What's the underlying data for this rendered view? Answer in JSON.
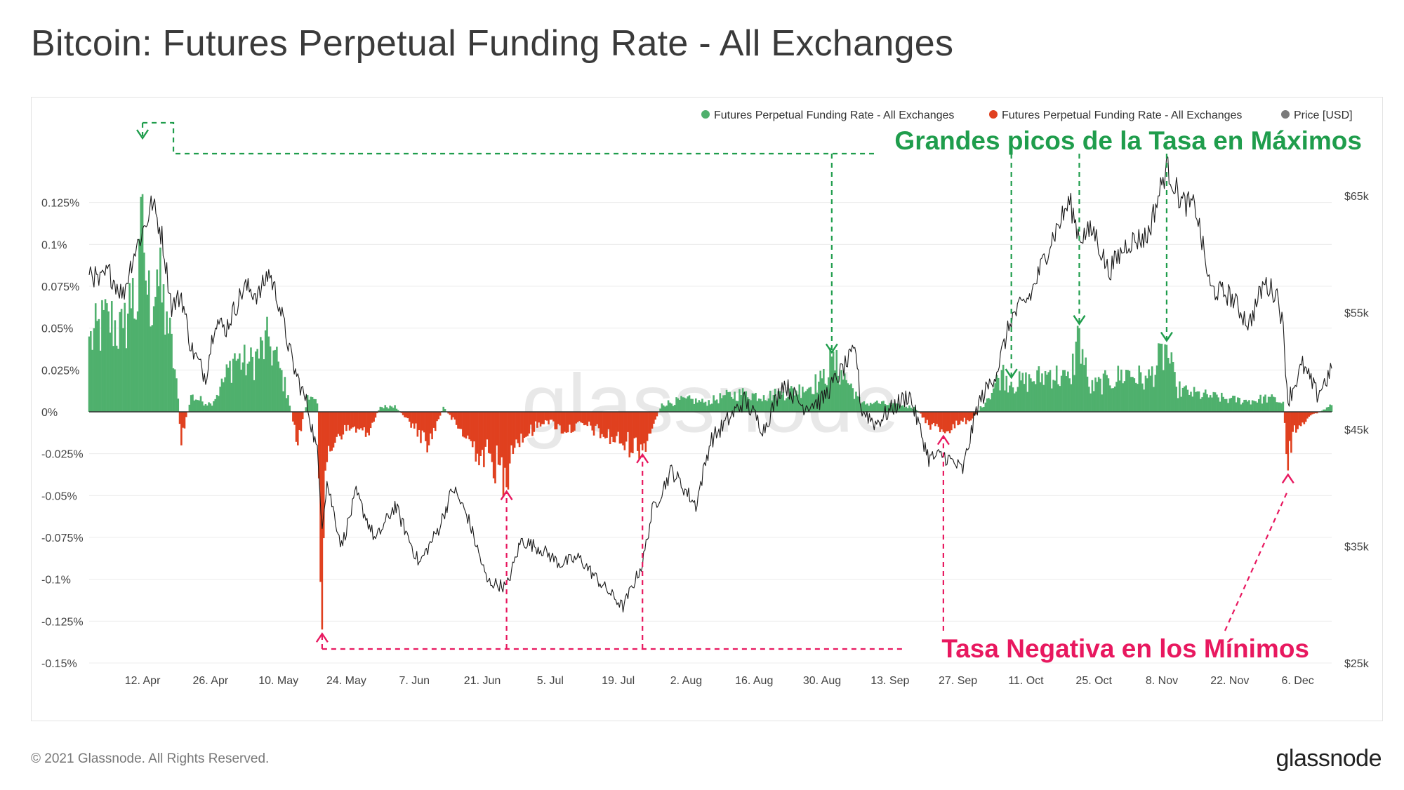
{
  "title": "Bitcoin: Futures Perpetual Funding Rate - All Exchanges",
  "footer": {
    "copyright": "© 2021 Glassnode. All Rights Reserved.",
    "brand": "glassnode"
  },
  "chart_data": {
    "type": "area",
    "watermark": "glassnode",
    "legend": {
      "placement": "top-right",
      "entries": [
        {
          "label": "Futures Perpetual Funding Rate - All Exchanges",
          "color": "#4fb06d"
        },
        {
          "label": "Futures Perpetual Funding Rate - All Exchanges",
          "color": "#e0401f"
        },
        {
          "label": "Price [USD]",
          "color": "#7a7a7a"
        }
      ]
    },
    "x_ticks": [
      "12. Apr",
      "26. Apr",
      "10. May",
      "24. May",
      "7. Jun",
      "21. Jun",
      "5. Jul",
      "19. Jul",
      "2. Aug",
      "16. Aug",
      "30. Aug",
      "13. Sep",
      "27. Sep",
      "11. Oct",
      "25. Oct",
      "8. Nov",
      "22. Nov",
      "6. Dec"
    ],
    "x_range": [
      "2021-04-01",
      "2021-12-13"
    ],
    "y_left": {
      "ticks": [
        "0.125%",
        "0.1%",
        "0.075%",
        "0.05%",
        "0.025%",
        "0%",
        "-0.025%",
        "-0.05%",
        "-0.075%",
        "-0.1%",
        "-0.125%",
        "-0.15%"
      ],
      "range": [
        -0.15,
        0.15
      ]
    },
    "y_right": {
      "ticks": [
        "$65k",
        "$55k",
        "$45k",
        "$35k",
        "$25k"
      ],
      "range": [
        25000,
        68000
      ]
    },
    "funding_rate_pct": {
      "anchors": [
        [
          "2021-04-01",
          0.045
        ],
        [
          "2021-04-05",
          0.06
        ],
        [
          "2021-04-08",
          0.05
        ],
        [
          "2021-04-10",
          0.08
        ],
        [
          "2021-04-11",
          0.06
        ],
        [
          "2021-04-12",
          0.13
        ],
        [
          "2021-04-13",
          0.07
        ],
        [
          "2021-04-15",
          0.085
        ],
        [
          "2021-04-17",
          0.06
        ],
        [
          "2021-04-19",
          0.02
        ],
        [
          "2021-04-20",
          -0.02
        ],
        [
          "2021-04-22",
          0.01
        ],
        [
          "2021-04-26",
          0.005
        ],
        [
          "2021-04-28",
          0.015
        ],
        [
          "2021-05-01",
          0.035
        ],
        [
          "2021-05-04",
          0.03
        ],
        [
          "2021-05-08",
          0.045
        ],
        [
          "2021-05-10",
          0.03
        ],
        [
          "2021-05-12",
          0.01
        ],
        [
          "2021-05-14",
          -0.02
        ],
        [
          "2021-05-16",
          0.01
        ],
        [
          "2021-05-18",
          0.005
        ],
        [
          "2021-05-19",
          -0.13
        ],
        [
          "2021-05-20",
          -0.03
        ],
        [
          "2021-05-22",
          -0.015
        ],
        [
          "2021-05-25",
          -0.01
        ],
        [
          "2021-05-28",
          -0.015
        ],
        [
          "2021-05-31",
          0.003
        ],
        [
          "2021-06-03",
          0.004
        ],
        [
          "2021-06-07",
          -0.01
        ],
        [
          "2021-06-10",
          -0.02
        ],
        [
          "2021-06-13",
          0.003
        ],
        [
          "2021-06-16",
          -0.01
        ],
        [
          "2021-06-20",
          -0.025
        ],
        [
          "2021-06-23",
          -0.03
        ],
        [
          "2021-06-26",
          -0.045
        ],
        [
          "2021-06-27",
          -0.02
        ],
        [
          "2021-06-30",
          -0.015
        ],
        [
          "2021-07-04",
          -0.005
        ],
        [
          "2021-07-08",
          -0.012
        ],
        [
          "2021-07-12",
          -0.008
        ],
        [
          "2021-07-16",
          -0.015
        ],
        [
          "2021-07-20",
          -0.02
        ],
        [
          "2021-07-24",
          -0.023
        ],
        [
          "2021-07-26",
          -0.01
        ],
        [
          "2021-07-28",
          0.005
        ],
        [
          "2021-08-02",
          0.008
        ],
        [
          "2021-08-06",
          0.006
        ],
        [
          "2021-08-10",
          0.01
        ],
        [
          "2021-08-14",
          0.012
        ],
        [
          "2021-08-18",
          0.01
        ],
        [
          "2021-08-22",
          0.012
        ],
        [
          "2021-08-26",
          0.015
        ],
        [
          "2021-08-30",
          0.02
        ],
        [
          "2021-09-01",
          0.033
        ],
        [
          "2021-09-03",
          0.025
        ],
        [
          "2021-09-06",
          0.012
        ],
        [
          "2021-09-07",
          0.005
        ],
        [
          "2021-09-10",
          0.006
        ],
        [
          "2021-09-14",
          0.004
        ],
        [
          "2021-09-18",
          0.003
        ],
        [
          "2021-09-21",
          -0.008
        ],
        [
          "2021-09-24",
          -0.012
        ],
        [
          "2021-09-27",
          -0.008
        ],
        [
          "2021-09-30",
          -0.004
        ],
        [
          "2021-10-03",
          0.008
        ],
        [
          "2021-10-06",
          0.025
        ],
        [
          "2021-10-08",
          0.018
        ],
        [
          "2021-10-12",
          0.02
        ],
        [
          "2021-10-16",
          0.025
        ],
        [
          "2021-10-20",
          0.02
        ],
        [
          "2021-10-22",
          0.05
        ],
        [
          "2021-10-24",
          0.015
        ],
        [
          "2021-10-28",
          0.02
        ],
        [
          "2021-11-01",
          0.025
        ],
        [
          "2021-11-05",
          0.02
        ],
        [
          "2021-11-09",
          0.04
        ],
        [
          "2021-11-11",
          0.015
        ],
        [
          "2021-11-14",
          0.012
        ],
        [
          "2021-11-18",
          0.01
        ],
        [
          "2021-11-22",
          0.008
        ],
        [
          "2021-11-26",
          0.007
        ],
        [
          "2021-11-30",
          0.009
        ],
        [
          "2021-12-03",
          0.006
        ],
        [
          "2021-12-04",
          -0.035
        ],
        [
          "2021-12-05",
          -0.012
        ],
        [
          "2021-12-08",
          -0.004
        ],
        [
          "2021-12-13",
          0.004
        ]
      ]
    },
    "price_usd": {
      "anchors": [
        [
          "2021-04-01",
          58800
        ],
        [
          "2021-04-03",
          57500
        ],
        [
          "2021-04-05",
          58500
        ],
        [
          "2021-04-08",
          56500
        ],
        [
          "2021-04-10",
          59800
        ],
        [
          "2021-04-13",
          63000
        ],
        [
          "2021-04-14",
          64500
        ],
        [
          "2021-04-16",
          61500
        ],
        [
          "2021-04-18",
          55500
        ],
        [
          "2021-04-20",
          56500
        ],
        [
          "2021-04-22",
          52000
        ],
        [
          "2021-04-25",
          49500
        ],
        [
          "2021-04-27",
          54500
        ],
        [
          "2021-04-29",
          53500
        ],
        [
          "2021-05-03",
          57200
        ],
        [
          "2021-05-06",
          56500
        ],
        [
          "2021-05-08",
          58500
        ],
        [
          "2021-05-10",
          56000
        ],
        [
          "2021-05-13",
          50500
        ],
        [
          "2021-05-16",
          47000
        ],
        [
          "2021-05-18",
          43000
        ],
        [
          "2021-05-19",
          37000
        ],
        [
          "2021-05-20",
          40500
        ],
        [
          "2021-05-23",
          35000
        ],
        [
          "2021-05-26",
          39500
        ],
        [
          "2021-05-30",
          35500
        ],
        [
          "2021-06-03",
          38500
        ],
        [
          "2021-06-08",
          33500
        ],
        [
          "2021-06-12",
          36500
        ],
        [
          "2021-06-15",
          40000
        ],
        [
          "2021-06-18",
          37500
        ],
        [
          "2021-06-22",
          32000
        ],
        [
          "2021-06-26",
          31500
        ],
        [
          "2021-06-29",
          35500
        ],
        [
          "2021-07-03",
          34800
        ],
        [
          "2021-07-07",
          33500
        ],
        [
          "2021-07-11",
          34000
        ],
        [
          "2021-07-15",
          32000
        ],
        [
          "2021-07-20",
          29800
        ],
        [
          "2021-07-24",
          33500
        ],
        [
          "2021-07-26",
          38000
        ],
        [
          "2021-07-30",
          41500
        ],
        [
          "2021-08-04",
          38500
        ],
        [
          "2021-08-07",
          44000
        ],
        [
          "2021-08-10",
          45500
        ],
        [
          "2021-08-14",
          47500
        ],
        [
          "2021-08-18",
          45000
        ],
        [
          "2021-08-22",
          49000
        ],
        [
          "2021-08-26",
          47000
        ],
        [
          "2021-08-30",
          47500
        ],
        [
          "2021-09-03",
          50000
        ],
        [
          "2021-09-06",
          51800
        ],
        [
          "2021-09-07",
          46800
        ],
        [
          "2021-09-10",
          45500
        ],
        [
          "2021-09-14",
          47000
        ],
        [
          "2021-09-17",
          48000
        ],
        [
          "2021-09-21",
          42500
        ],
        [
          "2021-09-24",
          42800
        ],
        [
          "2021-09-28",
          41500
        ],
        [
          "2021-10-01",
          47000
        ],
        [
          "2021-10-05",
          50000
        ],
        [
          "2021-10-08",
          54500
        ],
        [
          "2021-10-12",
          56500
        ],
        [
          "2021-10-16",
          61000
        ],
        [
          "2021-10-20",
          64500
        ],
        [
          "2021-10-22",
          61500
        ],
        [
          "2021-10-25",
          62000
        ],
        [
          "2021-10-28",
          58500
        ],
        [
          "2021-11-01",
          61000
        ],
        [
          "2021-11-05",
          61500
        ],
        [
          "2021-11-09",
          67500
        ],
        [
          "2021-11-12",
          64500
        ],
        [
          "2021-11-15",
          64000
        ],
        [
          "2021-11-18",
          57000
        ],
        [
          "2021-11-22",
          56500
        ],
        [
          "2021-11-26",
          54000
        ],
        [
          "2021-11-29",
          57500
        ],
        [
          "2021-12-02",
          56500
        ],
        [
          "2021-12-03",
          53500
        ],
        [
          "2021-12-04",
          47500
        ],
        [
          "2021-12-07",
          50500
        ],
        [
          "2021-12-10",
          48000
        ],
        [
          "2021-12-13",
          50000
        ]
      ]
    },
    "annotations": [
      {
        "text": "Grandes picos de la Tasa en Máximos",
        "color": "#1f9d4c",
        "points": [
          "2021-04-12",
          "2021-09-01",
          "2021-10-08",
          "2021-10-22",
          "2021-11-09"
        ]
      },
      {
        "text": "Tasa Negativa en los Mínimos",
        "color": "#e8185f",
        "points": [
          "2021-05-19",
          "2021-06-26",
          "2021-07-24",
          "2021-09-24",
          "2021-12-04"
        ]
      }
    ]
  }
}
